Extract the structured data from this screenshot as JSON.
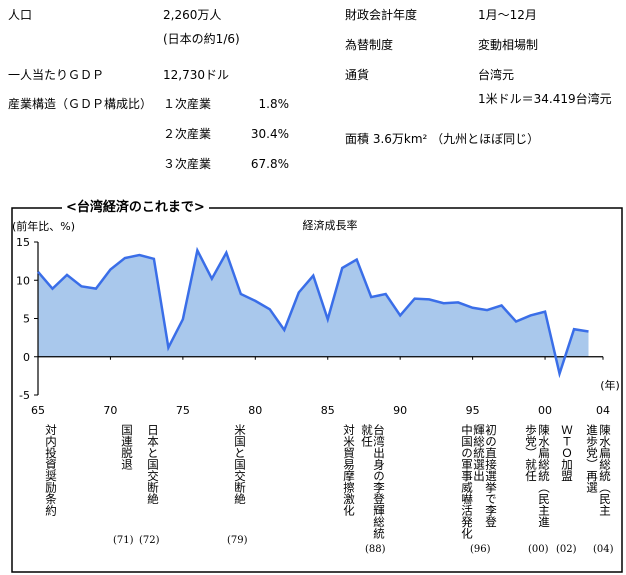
{
  "info": {
    "population_label": "人口",
    "population": "2,260万人",
    "population_note": "(日本の約1/6)",
    "fiscal_label": "財政会計年度",
    "fiscal": "1月～12月",
    "fx_label": "為替制度",
    "fx": "変動相場制",
    "gdp_label": "一人当たりＧＤＰ",
    "gdp": "12,730ドル",
    "currency_label": "通貨",
    "currency": "台湾元",
    "rate": "1米ドル＝34.419台湾元",
    "industry_label": "産業構造（ＧＤＰ構成比）",
    "industries": [
      [
        "１次産業",
        "1.8%"
      ],
      [
        "２次産業",
        "30.4%"
      ],
      [
        "３次産業",
        "67.8%"
      ]
    ],
    "area": "面積 3.6万km² （九州とほぼ同じ）"
  },
  "heading": "<台湾経済のこれまで>",
  "chart_data": {
    "type": "area",
    "title": "経済成長率",
    "ylabel": "(前年比、%)",
    "xlabel": "(年)",
    "color": "#3a6ee8",
    "fill": "#a9c8ec",
    "x": [
      1965,
      1966,
      1967,
      1968,
      1969,
      1970,
      1971,
      1972,
      1973,
      1974,
      1975,
      1976,
      1977,
      1978,
      1979,
      1980,
      1981,
      1982,
      1983,
      1984,
      1985,
      1986,
      1987,
      1988,
      1989,
      1990,
      1991,
      1992,
      1993,
      1994,
      1995,
      1996,
      1997,
      1998,
      1999,
      2000,
      2001,
      2002,
      2003
    ],
    "values": [
      11.1,
      8.9,
      10.7,
      9.2,
      8.9,
      11.4,
      12.9,
      13.3,
      12.8,
      1.2,
      4.9,
      13.9,
      10.2,
      13.6,
      8.2,
      7.3,
      6.2,
      3.5,
      8.4,
      10.6,
      4.9,
      11.6,
      12.7,
      7.8,
      8.2,
      5.4,
      7.6,
      7.5,
      7.0,
      7.1,
      6.4,
      6.1,
      6.7,
      4.6,
      5.4,
      5.9,
      -2.2,
      3.6,
      3.3
    ],
    "xlim": [
      1965,
      2004
    ],
    "xticks": [
      {
        "value": 1965,
        "label": "65"
      },
      {
        "value": 1970,
        "label": "70"
      },
      {
        "value": 1975,
        "label": "75"
      },
      {
        "value": 1980,
        "label": "80"
      },
      {
        "value": 1985,
        "label": "85"
      },
      {
        "value": 1990,
        "label": "90"
      },
      {
        "value": 1995,
        "label": "95"
      },
      {
        "value": 2000,
        "label": "00"
      },
      {
        "value": 2004,
        "label": "04"
      }
    ],
    "ylim": [
      -5,
      15
    ],
    "yticks": [
      -5,
      0,
      5,
      10,
      15
    ]
  },
  "events": [
    {
      "lines": [
        "対内投資奨励条約"
      ]
    },
    {
      "lines": [
        "国連脱退"
      ],
      "year": "(71)"
    },
    {
      "lines": [
        "日本と国交断絶"
      ],
      "year": "(72)"
    },
    {
      "lines": [
        "米国と国交断絶"
      ],
      "year": "(79)"
    },
    {
      "lines": [
        "対米貿易摩擦激化"
      ]
    },
    {
      "lines": [
        "台湾出身の李登輝総統",
        "就任"
      ],
      "year": "(88)"
    },
    {
      "lines": [
        "初の直接選挙で李登",
        "輝総統選出",
        "中国の軍事威嚇活発化"
      ],
      "year": "(96)"
    },
    {
      "lines": [
        "陳水扁総統（民主進",
        "歩党）就任"
      ],
      "year": "(00)"
    },
    {
      "lines": [
        "ＷＴＯ加盟"
      ],
      "year": "(02)"
    },
    {
      "lines": [
        "陳水扁総統（民主",
        "進歩党）再選"
      ],
      "year": "(04)"
    }
  ]
}
